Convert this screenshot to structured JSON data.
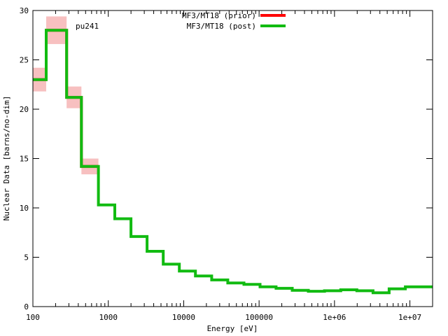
{
  "chart_data": {
    "type": "line",
    "title": "",
    "xlabel": "Energy [eV]",
    "ylabel": "Nuclear Data [barns/no-dim]",
    "xscale": "log",
    "xlim": [
      100,
      20000000
    ],
    "ylim": [
      0,
      30
    ],
    "grid": false,
    "legend_position": "top-center",
    "annotation": "pu241",
    "x_ticks": [
      {
        "value": 100,
        "label": "100"
      },
      {
        "value": 1000,
        "label": "1000"
      },
      {
        "value": 10000,
        "label": "10000"
      },
      {
        "value": 100000,
        "label": "100000"
      },
      {
        "value": 1000000,
        "label": "1e+06"
      },
      {
        "value": 10000000,
        "label": "1e+07"
      }
    ],
    "y_ticks": [
      {
        "value": 0,
        "label": "0"
      },
      {
        "value": 5,
        "label": "5"
      },
      {
        "value": 10,
        "label": "10"
      },
      {
        "value": 15,
        "label": "15"
      },
      {
        "value": 20,
        "label": "20"
      },
      {
        "value": 25,
        "label": "25"
      },
      {
        "value": 30,
        "label": "30"
      }
    ],
    "bin_edges": [
      100,
      150,
      280,
      440,
      740,
      1220,
      2000,
      3270,
      5350,
      8760,
      14300,
      23500,
      38400,
      62900,
      103000,
      168000,
      275000,
      450000,
      737000,
      1210000,
      1980000,
      3240000,
      5300000,
      8700000,
      20000000
    ],
    "series": [
      {
        "name": "MF3/MT18 (prior)",
        "color": "#ff0000",
        "values": [
          23.0,
          28.0,
          21.2,
          14.2
        ],
        "uncertainty": [
          1.2,
          1.4,
          1.1,
          0.8
        ]
      },
      {
        "name": "MF3/MT18 (post)",
        "color": "#11bb11",
        "values": [
          23.0,
          28.0,
          21.2,
          14.2,
          10.3,
          8.9,
          7.1,
          5.6,
          4.3,
          3.6,
          3.1,
          2.7,
          2.4,
          2.25,
          2.0,
          1.85,
          1.65,
          1.55,
          1.6,
          1.7,
          1.6,
          1.4,
          1.8,
          2.0
        ]
      }
    ],
    "uncertainty_color": "#f7c0c0"
  }
}
